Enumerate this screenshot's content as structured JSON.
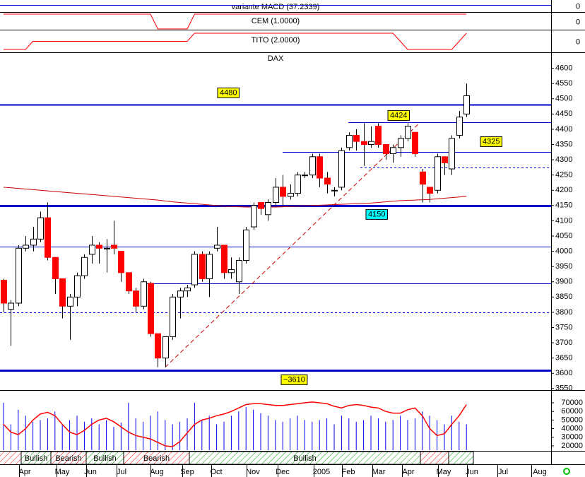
{
  "chart_data": {
    "type": "candlestick",
    "title": "DAX",
    "open": [
      3905,
      3810,
      3830,
      4010,
      4020,
      4040,
      4110,
      3980,
      3910,
      3820,
      3850,
      3920,
      3990,
      4020,
      4010,
      4020,
      4000,
      3930,
      3870,
      3820,
      3895,
      3730,
      3650,
      3720,
      3850,
      3870,
      3890,
      3990,
      3910,
      4010,
      4020,
      3930,
      3900,
      3970,
      4080,
      4160,
      4120,
      4160,
      4210,
      4180,
      4190,
      4250,
      4250,
      4310,
      4240,
      4200,
      4210,
      4340,
      4380,
      4360,
      4350,
      4410,
      4350,
      4320,
      4340,
      4370,
      4390,
      4260,
      4210,
      4200,
      4310,
      4270,
      4380,
      4450
    ],
    "high": [
      3910,
      3840,
      4020,
      4050,
      4080,
      4130,
      4160,
      3980,
      3910,
      3860,
      3930,
      3990,
      4050,
      4030,
      4040,
      4100,
      4000,
      3930,
      3880,
      3910,
      3900,
      3730,
      3720,
      3860,
      3880,
      3890,
      4000,
      4000,
      4000,
      4080,
      4020,
      3980,
      3980,
      4080,
      4160,
      4160,
      4170,
      4240,
      4250,
      4220,
      4260,
      4260,
      4320,
      4320,
      4260,
      4210,
      4340,
      4390,
      4400,
      4420,
      4410,
      4420,
      4350,
      4350,
      4380,
      4420,
      4390,
      4270,
      4210,
      4320,
      4310,
      4380,
      4460,
      4550
    ],
    "low": [
      3800,
      3690,
      3820,
      4000,
      4000,
      4030,
      3970,
      3860,
      3780,
      3710,
      3820,
      3910,
      3960,
      3960,
      3930,
      3990,
      3900,
      3860,
      3800,
      3810,
      3720,
      3620,
      3620,
      3710,
      3780,
      3850,
      3880,
      3900,
      3850,
      4000,
      3910,
      3910,
      3860,
      3960,
      4070,
      4120,
      4100,
      4150,
      4150,
      4170,
      4180,
      4240,
      4240,
      4210,
      4190,
      4180,
      4200,
      4330,
      4330,
      4280,
      4340,
      4340,
      4300,
      4290,
      4310,
      4360,
      4310,
      4160,
      4160,
      4190,
      4250,
      4250,
      4370,
      4440
    ],
    "close": [
      3830,
      3830,
      4010,
      4020,
      4040,
      4110,
      3980,
      3910,
      3820,
      3850,
      3920,
      3980,
      4020,
      4010,
      4010,
      4010,
      3930,
      3870,
      3820,
      3900,
      3730,
      3650,
      3720,
      3850,
      3870,
      3880,
      3990,
      3910,
      3990,
      4020,
      3930,
      3940,
      3970,
      4070,
      4150,
      4140,
      4160,
      4210,
      4180,
      4190,
      4250,
      4250,
      4310,
      4240,
      4220,
      4200,
      4330,
      4380,
      4360,
      4350,
      4360,
      4350,
      4320,
      4340,
      4370,
      4410,
      4320,
      4220,
      4190,
      4310,
      4290,
      4370,
      4440,
      4510
    ],
    "up_color": "#ffffff",
    "down_color": "#ff0000",
    "ylim": [
      3545,
      4650
    ],
    "yticks": [
      4600,
      4550,
      4500,
      4450,
      4400,
      4350,
      4300,
      4250,
      4200,
      4150,
      4100,
      4050,
      4000,
      3950,
      3900,
      3850,
      3800,
      3750,
      3700,
      3650,
      3600,
      3550
    ],
    "moving_average": {
      "color": "#cc0000",
      "values": [
        4210,
        4208,
        4206,
        4204,
        4202,
        4200,
        4198,
        4196,
        4194,
        4192,
        4190,
        4188,
        4186,
        4184,
        4182,
        4180,
        4178,
        4176,
        4174,
        4172,
        4170,
        4168,
        4165,
        4162,
        4160,
        4158,
        4156,
        4154,
        4152,
        4150,
        4148,
        4147,
        4146,
        4145,
        4145,
        4145,
        4145,
        4145,
        4146,
        4147,
        4148,
        4149,
        4150,
        4151,
        4152,
        4153,
        4154,
        4155,
        4156,
        4157,
        4158,
        4160,
        4162,
        4164,
        4166,
        4167,
        4168,
        4169,
        4170,
        4172,
        4174,
        4176,
        4178,
        4180
      ]
    },
    "trendline": {
      "color": "#cc0000",
      "values": [
        3620,
        4420
      ]
    },
    "levels": [
      {
        "value": 4480,
        "label": "4480",
        "label_color": "#ffff00"
      },
      {
        "value": 4424,
        "label": "4424",
        "label_color": "#ffff00"
      },
      {
        "value": 4325,
        "label": "4325",
        "label_color": "#ffff00"
      },
      {
        "value": 4275,
        "dashed": true
      },
      {
        "value": 4150,
        "label": "4150",
        "label_color": "#00ffff"
      },
      {
        "value": 4015
      },
      {
        "value": 3895
      },
      {
        "value": 3800,
        "dashed": true
      },
      {
        "value": 3610,
        "label": "~3610",
        "label_color": "#ffff00"
      }
    ],
    "x_labels": [
      "Apr",
      "May",
      "Jun",
      "Jul",
      "Aug",
      "Sep",
      "Oct",
      "Nov",
      "Dec",
      "2005",
      "Feb",
      "Mar",
      "Apr",
      "May",
      "Jun",
      "Jul",
      "Aug"
    ],
    "indicators": [
      {
        "title": "variante MACD (37.2339)",
        "yticks": [
          0
        ]
      },
      {
        "title": "CEM (1.0000)",
        "color": "#ff0000",
        "yticks": [
          0
        ],
        "values": [
          1,
          1,
          1,
          1,
          1,
          1,
          1,
          1,
          1,
          1,
          1,
          1,
          1,
          1,
          1,
          1,
          1,
          1,
          1,
          1,
          1,
          0,
          0,
          0,
          0,
          0,
          1,
          1,
          1,
          1,
          1,
          1,
          1,
          1,
          1,
          1,
          1,
          1,
          1,
          1,
          1,
          1,
          1,
          1,
          1,
          1,
          1,
          1,
          1,
          1,
          1,
          1,
          1,
          1,
          1,
          1,
          1,
          1,
          1,
          1,
          1,
          1,
          1,
          1
        ]
      },
      {
        "title": "TITO (2.0000)",
        "color": "#ff0000",
        "yticks": [
          0
        ],
        "values": [
          0,
          0,
          0,
          0,
          1,
          1,
          1,
          1,
          1,
          1,
          1,
          1,
          1,
          1,
          1,
          1,
          1,
          1,
          1,
          1,
          1,
          1,
          1,
          1,
          1,
          1,
          2,
          2,
          2,
          2,
          2,
          2,
          2,
          2,
          2,
          2,
          2,
          2,
          2,
          2,
          2,
          2,
          2,
          2,
          2,
          2,
          2,
          2,
          2,
          2,
          2,
          2,
          2,
          2,
          1,
          0,
          0,
          0,
          0,
          0,
          0,
          0,
          1,
          2
        ]
      }
    ],
    "volume": {
      "color": "#0000ff",
      "oscillator_color": "#ff0000",
      "values": [
        70000,
        45000,
        62000,
        55000,
        48000,
        50000,
        52000,
        60000,
        45000,
        50000,
        55000,
        48000,
        52000,
        45000,
        50000,
        42000,
        47000,
        70000,
        52000,
        48000,
        55000,
        60000,
        50000,
        45000,
        48000,
        52000,
        70000,
        50000,
        55000,
        45000,
        48000,
        55000,
        60000,
        65000,
        62000,
        58000,
        55000,
        50000,
        48000,
        52000,
        55000,
        50000,
        48000,
        50000,
        52000,
        45000,
        55000,
        52000,
        48000,
        50000,
        55000,
        52000,
        48000,
        50000,
        55000,
        50000,
        52000,
        60000,
        55000,
        50000,
        45000,
        55000,
        48000,
        45000
      ],
      "oscillator": [
        45000,
        36000,
        33000,
        40000,
        50000,
        57000,
        59000,
        55000,
        45000,
        36000,
        33000,
        38000,
        45000,
        50000,
        52000,
        48000,
        42000,
        36000,
        32000,
        30000,
        28000,
        24000,
        20000,
        19000,
        25000,
        35000,
        45000,
        50000,
        52000,
        55000,
        57000,
        60000,
        64000,
        68000,
        69000,
        69000,
        68000,
        67000,
        67000,
        68000,
        69000,
        70000,
        71000,
        70000,
        69000,
        66000,
        64000,
        67000,
        68000,
        67000,
        65000,
        64000,
        60000,
        58000,
        58000,
        62000,
        64000,
        55000,
        40000,
        32000,
        34000,
        45000,
        55000,
        68000
      ],
      "ylim": [
        15000,
        84000
      ],
      "yticks": [
        70000,
        60000,
        50000,
        40000,
        30000,
        20000
      ]
    },
    "regimes": [
      "Bullish",
      "Bearish",
      "Bullish",
      "Bearish",
      "Bullish"
    ]
  }
}
